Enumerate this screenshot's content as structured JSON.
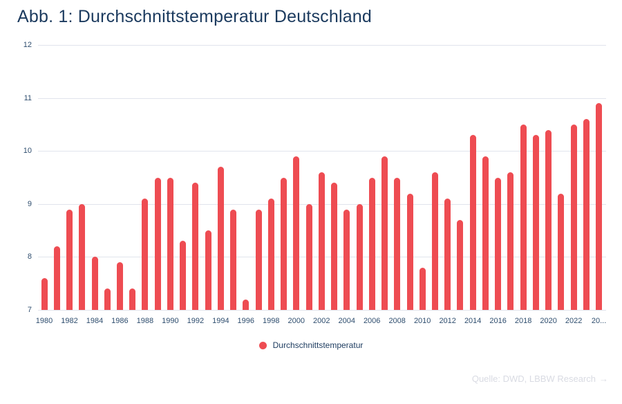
{
  "title": "Abb. 1: Durchschnittstemperatur Deutschland",
  "legend": {
    "label": "Durchschnittstemperatur"
  },
  "source": {
    "label": "Quelle: DWD, LBBW Research",
    "arrow": "→"
  },
  "colors": {
    "bar": "#ee4c52",
    "title": "#1b3a5e",
    "tick": "#2e4d6e",
    "grid": "#e1e4ec",
    "source": "#d9dbe3",
    "background": "#ffffff"
  },
  "chart_data": {
    "type": "bar",
    "title": "Abb. 1: Durchschnittstemperatur Deutschland",
    "xlabel": "",
    "ylabel": "",
    "ylim": [
      7,
      12
    ],
    "y_ticks": [
      7,
      8,
      9,
      10,
      11,
      12
    ],
    "grid": true,
    "legend_position": "bottom-center",
    "series_name": "Durchschnittstemperatur",
    "categories": [
      1980,
      1981,
      1982,
      1983,
      1984,
      1985,
      1986,
      1987,
      1988,
      1989,
      1990,
      1991,
      1992,
      1993,
      1994,
      1995,
      1996,
      1997,
      1998,
      1999,
      2000,
      2001,
      2002,
      2003,
      2004,
      2005,
      2006,
      2007,
      2008,
      2009,
      2010,
      2011,
      2012,
      2013,
      2014,
      2015,
      2016,
      2017,
      2018,
      2019,
      2020,
      2021,
      2022,
      2023,
      2024
    ],
    "values": [
      7.6,
      8.2,
      8.9,
      9.0,
      8.0,
      7.4,
      7.9,
      7.4,
      9.1,
      9.5,
      9.5,
      8.3,
      9.4,
      8.5,
      9.7,
      8.9,
      7.2,
      8.9,
      9.1,
      9.5,
      9.9,
      9.0,
      9.6,
      9.4,
      8.9,
      9.0,
      9.5,
      9.9,
      9.5,
      9.2,
      7.8,
      9.6,
      9.1,
      8.7,
      10.3,
      9.9,
      9.5,
      9.6,
      10.5,
      10.3,
      10.4,
      9.2,
      10.5,
      10.6,
      10.9
    ],
    "x_tick_labels": [
      "1980",
      "1982",
      "1984",
      "1986",
      "1988",
      "1990",
      "1992",
      "1994",
      "1996",
      "1998",
      "2000",
      "2002",
      "2004",
      "2006",
      "2008",
      "2010",
      "2012",
      "2014",
      "2016",
      "2018",
      "2020",
      "2022",
      "20..."
    ]
  }
}
